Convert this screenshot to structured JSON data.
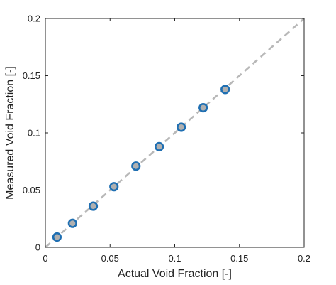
{
  "chart_data": {
    "type": "scatter",
    "xlabel": "Actual Void Fraction [-]",
    "ylabel": "Measured Void Fraction [-]",
    "xlim": [
      0,
      0.2
    ],
    "ylim": [
      0,
      0.2
    ],
    "x_ticks": [
      0,
      0.05,
      0.1,
      0.15,
      0.2
    ],
    "y_ticks": [
      0,
      0.05,
      0.1,
      0.15,
      0.2
    ],
    "x_tick_labels": [
      "0",
      "0.05",
      "0.1",
      "0.15",
      "0.2"
    ],
    "y_tick_labels": [
      "0",
      "0.05",
      "0.1",
      "0.15",
      "0.2"
    ],
    "grid": false,
    "legend": "none",
    "series": [
      {
        "x": [
          0.009,
          0.021,
          0.037,
          0.053,
          0.07,
          0.088,
          0.105,
          0.122,
          0.139
        ],
        "y": [
          0.009,
          0.021,
          0.036,
          0.053,
          0.071,
          0.088,
          0.105,
          0.122,
          0.138
        ],
        "marker": "circle",
        "color": "#1f6fb2",
        "fill": "#b0b0b0"
      }
    ],
    "reference_line": {
      "x": [
        0,
        0.2
      ],
      "y": [
        0,
        0.2
      ],
      "style": "dashed",
      "color": "#b8b8b8"
    }
  }
}
